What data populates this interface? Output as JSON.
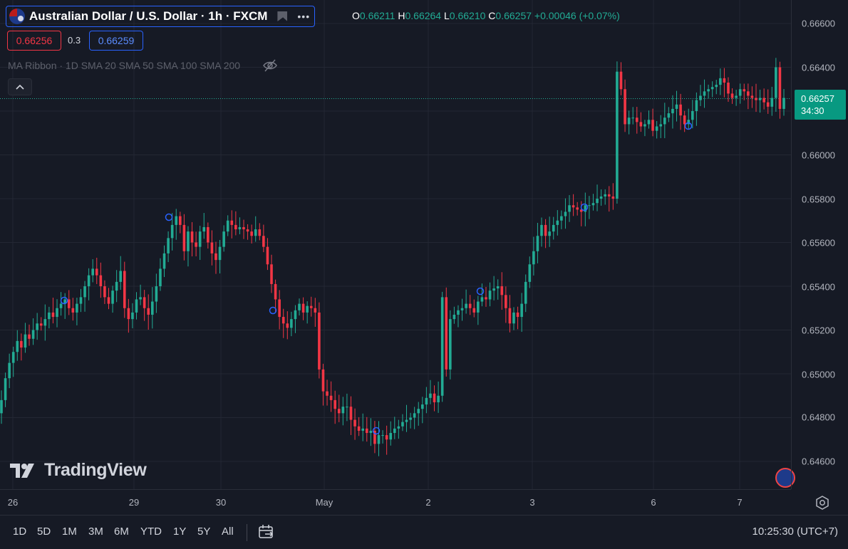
{
  "symbol": {
    "title": "Australian Dollar / U.S. Dollar · 1h · FXCM",
    "more_label": "•••",
    "flag_icon": "aud-usd-flag-icon"
  },
  "ohlc": {
    "o_label": "O",
    "o_value": "0.66211",
    "h_label": "H",
    "h_value": "0.66264",
    "l_label": "L",
    "l_value": "0.66210",
    "c_label": "C",
    "c_value": "0.66257",
    "change": "+0.00046 (+0.07%)"
  },
  "quote": {
    "bid": "0.66256",
    "spread": "0.3",
    "ask": "0.66259"
  },
  "indicator": {
    "label": "MA Ribbon · 1D SMA 20 SMA 50 SMA 100 SMA 200"
  },
  "price_axis": {
    "labels": [
      "0.66600",
      "0.66400",
      "0.66200",
      "0.66000",
      "0.65800",
      "0.65600",
      "0.65400",
      "0.65200",
      "0.65000",
      "0.64800",
      "0.64600"
    ],
    "current_price": "0.66257",
    "countdown": "34:30"
  },
  "time_axis": {
    "labels": [
      "26",
      "29",
      "30",
      "May",
      "2",
      "3",
      "6",
      "7"
    ]
  },
  "ranges": [
    "1D",
    "5D",
    "1M",
    "3M",
    "6M",
    "YTD",
    "1Y",
    "5Y",
    "All"
  ],
  "clock": "10:25:30 (UTC+7)",
  "logo": {
    "text": "TradingView"
  },
  "colors": {
    "up": "#22ab94",
    "down": "#f23645",
    "background": "#161a25",
    "grid": "#232733",
    "accent": "#2962ff"
  },
  "chart_data": {
    "type": "candlestick",
    "ylim": [
      0.645,
      0.6672
    ],
    "y_ticks": [
      0.666,
      0.664,
      0.662,
      0.66,
      0.658,
      0.656,
      0.654,
      0.652,
      0.65,
      0.648,
      0.646
    ],
    "current_price": 0.66257,
    "x_labels": [
      "26",
      "29",
      "30",
      "May",
      "2",
      "3",
      "6",
      "7"
    ],
    "closes": [
      0.6488,
      0.6498,
      0.6505,
      0.651,
      0.6515,
      0.6512,
      0.6518,
      0.6516,
      0.652,
      0.6523,
      0.6522,
      0.6525,
      0.6528,
      0.6526,
      0.653,
      0.6532,
      0.6534,
      0.653,
      0.6528,
      0.6532,
      0.6535,
      0.654,
      0.6545,
      0.6548,
      0.6545,
      0.654,
      0.6535,
      0.6532,
      0.6538,
      0.6542,
      0.6547,
      0.653,
      0.6525,
      0.6528,
      0.6534,
      0.6535,
      0.653,
      0.6527,
      0.6533,
      0.654,
      0.6548,
      0.6555,
      0.6562,
      0.6568,
      0.6572,
      0.6568,
      0.6556,
      0.6565,
      0.656,
      0.6558,
      0.6565,
      0.6567,
      0.656,
      0.6555,
      0.6552,
      0.6558,
      0.6565,
      0.657,
      0.6568,
      0.6566,
      0.6567,
      0.6566,
      0.6565,
      0.6563,
      0.6566,
      0.6563,
      0.6558,
      0.655,
      0.6541,
      0.6534,
      0.6526,
      0.6523,
      0.6521,
      0.6525,
      0.6529,
      0.6532,
      0.6528,
      0.6531,
      0.653,
      0.6528,
      0.6502,
      0.6492,
      0.649,
      0.6488,
      0.6484,
      0.6482,
      0.6485,
      0.6485,
      0.6479,
      0.6476,
      0.6474,
      0.6475,
      0.6473,
      0.6474,
      0.6468,
      0.6472,
      0.6472,
      0.647,
      0.6473,
      0.6475,
      0.6476,
      0.6478,
      0.6479,
      0.648,
      0.6482,
      0.6484,
      0.6486,
      0.6489,
      0.6491,
      0.6487,
      0.649,
      0.6535,
      0.6502,
      0.6525,
      0.6527,
      0.6529,
      0.653,
      0.6532,
      0.653,
      0.6528,
      0.6533,
      0.6535,
      0.6534,
      0.6538,
      0.6539,
      0.654,
      0.6536,
      0.653,
      0.6523,
      0.6528,
      0.6526,
      0.6532,
      0.6542,
      0.655,
      0.6556,
      0.6563,
      0.6568,
      0.6563,
      0.6565,
      0.6568,
      0.657,
      0.6572,
      0.6574,
      0.6577,
      0.6576,
      0.6575,
      0.6574,
      0.6577,
      0.6577,
      0.6578,
      0.658,
      0.6581,
      0.6582,
      0.6581,
      0.658,
      0.6638,
      0.663,
      0.6614,
      0.6617,
      0.6617,
      0.6615,
      0.6613,
      0.6614,
      0.6616,
      0.6611,
      0.6613,
      0.6614,
      0.6617,
      0.6619,
      0.6621,
      0.6623,
      0.6618,
      0.6614,
      0.6616,
      0.662,
      0.6625,
      0.6627,
      0.6629,
      0.663,
      0.6631,
      0.6632,
      0.6635,
      0.6633,
      0.6628,
      0.6626,
      0.6627,
      0.663,
      0.6629,
      0.6627,
      0.6626,
      0.6625,
      0.6626,
      0.6624,
      0.6622,
      0.6626,
      0.664,
      0.6621,
      0.6626
    ]
  }
}
